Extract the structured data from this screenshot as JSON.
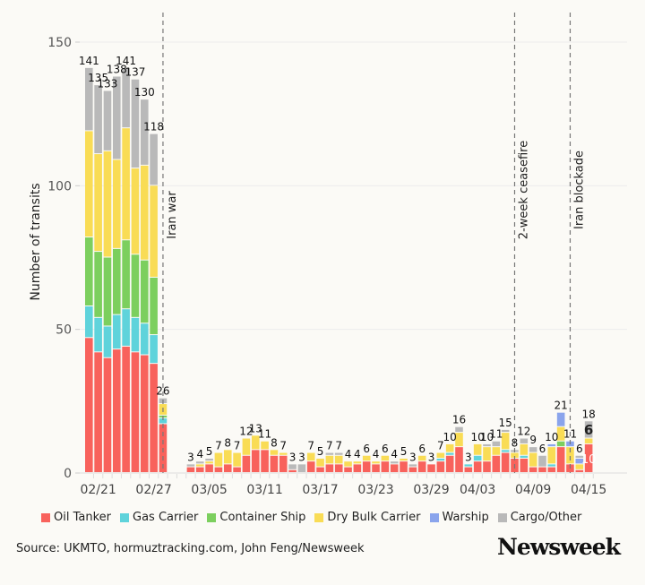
{
  "chart_data": {
    "type": "bar",
    "stacked": true,
    "title": "",
    "xlabel": "",
    "ylabel": "Number of transits",
    "ylim": [
      0,
      155
    ],
    "yticks": [
      0,
      50,
      100,
      150
    ],
    "grid": true,
    "legend_position": "bottom",
    "x_tick_labels": [
      "02/21",
      "02/27",
      "03/05",
      "03/11",
      "03/17",
      "03/23",
      "03/29",
      "04/03",
      "04/09",
      "04/15"
    ],
    "series_names": [
      "Oil Tanker",
      "Gas Carrier",
      "Container Ship",
      "Dry Bulk Carrier",
      "Warship",
      "Cargo/Other"
    ],
    "colors": {
      "Oil Tanker": "#f8625c",
      "Gas Carrier": "#5fd3db",
      "Container Ship": "#7ccf5e",
      "Dry Bulk Carrier": "#f9dc55",
      "Warship": "#8aa4ec",
      "Cargo/Other": "#b9b9b9"
    },
    "categories": [
      "02/20",
      "02/21",
      "02/22",
      "02/23",
      "02/24",
      "02/25",
      "02/26",
      "02/27",
      "02/28",
      "03/01",
      "03/02",
      "03/03",
      "03/04",
      "03/05",
      "03/06",
      "03/07",
      "03/08",
      "03/09",
      "03/10",
      "03/11",
      "03/12",
      "03/13",
      "03/14",
      "03/15",
      "03/16",
      "03/17",
      "03/18",
      "03/19",
      "03/20",
      "03/21",
      "03/22",
      "03/23",
      "03/24",
      "03/25",
      "03/26",
      "03/27",
      "03/28",
      "03/29",
      "03/30",
      "03/31",
      "04/01",
      "04/02",
      "04/03",
      "04/04",
      "04/05",
      "04/06",
      "04/07",
      "04/08",
      "04/09",
      "04/10",
      "04/11",
      "04/12",
      "04/13",
      "04/14",
      "04/15"
    ],
    "totals": [
      141,
      135,
      133,
      138,
      141,
      137,
      130,
      118,
      26,
      null,
      null,
      3,
      4,
      5,
      7,
      8,
      7,
      12,
      13,
      11,
      8,
      7,
      3,
      3,
      7,
      5,
      7,
      7,
      4,
      4,
      6,
      4,
      6,
      4,
      5,
      3,
      6,
      3,
      7,
      10,
      16,
      3,
      10,
      10,
      11,
      15,
      8,
      12,
      9,
      6,
      10,
      21,
      11,
      6,
      18
    ],
    "series": [
      {
        "name": "Oil Tanker",
        "values": [
          47,
          42,
          40,
          43,
          44,
          42,
          41,
          38,
          17,
          0,
          0,
          2,
          2,
          3,
          2,
          3,
          2,
          6,
          8,
          8,
          6,
          6,
          1,
          0,
          4,
          2,
          3,
          3,
          2,
          3,
          4,
          3,
          4,
          3,
          4,
          2,
          4,
          3,
          4,
          6,
          9,
          2,
          4,
          4,
          6,
          7,
          5,
          5,
          2,
          2,
          2,
          9,
          3,
          1,
          10
        ]
      },
      {
        "name": "Gas Carrier",
        "values": [
          11,
          12,
          11,
          12,
          13,
          12,
          11,
          10,
          2,
          0,
          0,
          0,
          0,
          0,
          0,
          0,
          0,
          0,
          0,
          0,
          0,
          0,
          0,
          0,
          0,
          0,
          0,
          0,
          0,
          0,
          0,
          0,
          0,
          0,
          0,
          0,
          0,
          0,
          1,
          1,
          0,
          1,
          2,
          0,
          0,
          1,
          0,
          1,
          0,
          0,
          1,
          0,
          0,
          0,
          0
        ]
      },
      {
        "name": "Container Ship",
        "values": [
          24,
          23,
          24,
          23,
          24,
          22,
          22,
          20,
          1,
          0,
          0,
          0,
          0,
          0,
          0,
          0,
          0,
          0,
          0,
          0,
          0,
          0,
          0,
          0,
          0,
          0,
          0,
          0,
          0,
          0,
          0,
          0,
          0,
          0,
          0,
          0,
          0,
          0,
          0,
          0,
          0,
          0,
          0,
          0,
          0,
          0,
          0,
          0,
          0,
          0,
          0,
          2,
          0,
          0,
          0
        ]
      },
      {
        "name": "Dry Bulk Carrier",
        "values": [
          37,
          34,
          37,
          31,
          39,
          30,
          33,
          32,
          4,
          0,
          0,
          0,
          1,
          1,
          5,
          5,
          5,
          6,
          5,
          3,
          2,
          1,
          0,
          0,
          3,
          3,
          3,
          3,
          2,
          1,
          2,
          1,
          2,
          0,
          1,
          0,
          2,
          0,
          2,
          3,
          5,
          0,
          4,
          5,
          3,
          6,
          2,
          4,
          5,
          0,
          6,
          5,
          6,
          2,
          2
        ]
      },
      {
        "name": "Warship",
        "values": [
          0,
          0,
          0,
          0,
          0,
          0,
          0,
          0,
          0,
          0,
          0,
          0,
          0,
          0,
          0,
          0,
          0,
          0,
          0,
          0,
          0,
          0,
          0,
          0,
          0,
          0,
          0,
          0,
          0,
          0,
          0,
          0,
          0,
          0,
          0,
          0,
          0,
          0,
          0,
          0,
          0,
          0,
          0,
          0,
          0,
          0,
          0,
          0,
          0,
          0,
          1,
          5,
          2,
          2,
          0
        ]
      },
      {
        "name": "Cargo/Other",
        "values": [
          22,
          24,
          21,
          29,
          21,
          31,
          23,
          18,
          2,
          0,
          0,
          1,
          1,
          1,
          0,
          0,
          0,
          0,
          0,
          0,
          0,
          0,
          2,
          3,
          0,
          0,
          1,
          1,
          0,
          0,
          0,
          0,
          0,
          1,
          0,
          1,
          0,
          0,
          0,
          0,
          2,
          0,
          0,
          1,
          2,
          1,
          1,
          2,
          2,
          4,
          0,
          0,
          0,
          1,
          6
        ]
      }
    ],
    "inside_labels": [
      {
        "date": "04/15",
        "series": "Oil Tanker",
        "text": "10"
      },
      {
        "date": "04/15",
        "series": "Cargo/Other",
        "text": "6"
      }
    ],
    "annotations": [
      {
        "date": "02/28",
        "label": "Iran war"
      },
      {
        "date": "04/07",
        "label": "2-week ceasefire"
      },
      {
        "date": "04/13",
        "label": "Iran blockade"
      }
    ]
  },
  "legend": {
    "items": [
      {
        "label": "Oil Tanker",
        "color": "#f8625c"
      },
      {
        "label": "Gas Carrier",
        "color": "#5fd3db"
      },
      {
        "label": "Container Ship",
        "color": "#7ccf5e"
      },
      {
        "label": "Dry Bulk Carrier",
        "color": "#f9dc55"
      },
      {
        "label": "Warship",
        "color": "#8aa4ec"
      },
      {
        "label": "Cargo/Other",
        "color": "#b9b9b9"
      }
    ]
  },
  "footer": {
    "source": "Source: UKMTO, hormuztracking.com, John Feng/Newsweek",
    "brand": "Newsweek"
  }
}
